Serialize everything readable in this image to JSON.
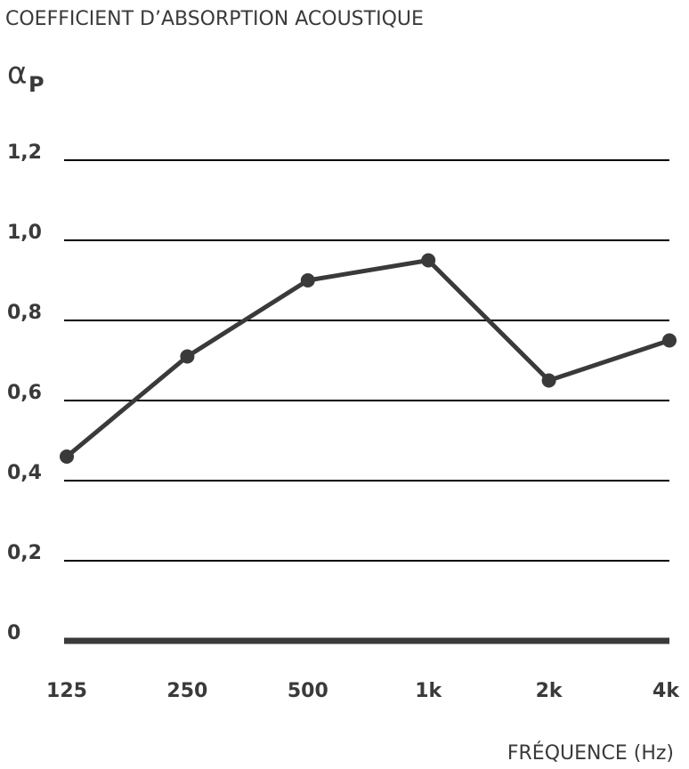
{
  "chart_data": {
    "type": "line",
    "title": "COEFFICIENT D’ABSORPTION ACOUSTIQUE",
    "y_label": "α",
    "y_label_subscript": "P",
    "x_label": "FRÉQUENCE (Hz)",
    "categories": [
      "125",
      "250",
      "500",
      "1k",
      "2k",
      "4k"
    ],
    "values": [
      0.46,
      0.71,
      0.9,
      0.95,
      0.65,
      0.75
    ],
    "color": "#3a3a3a",
    "ylim": [
      0,
      1.2
    ],
    "yticks": [
      0,
      {
        "value": 0.2,
        "label": "0,2"
      },
      {
        "value": 0.4,
        "label": "0,4"
      },
      {
        "value": 0.6,
        "label": "0,6"
      },
      {
        "value": 0.8,
        "label": "0,8"
      },
      {
        "value": 1.0,
        "label": "1,0"
      },
      {
        "value": 1.2,
        "label": "1,2"
      }
    ],
    "grid": true
  }
}
